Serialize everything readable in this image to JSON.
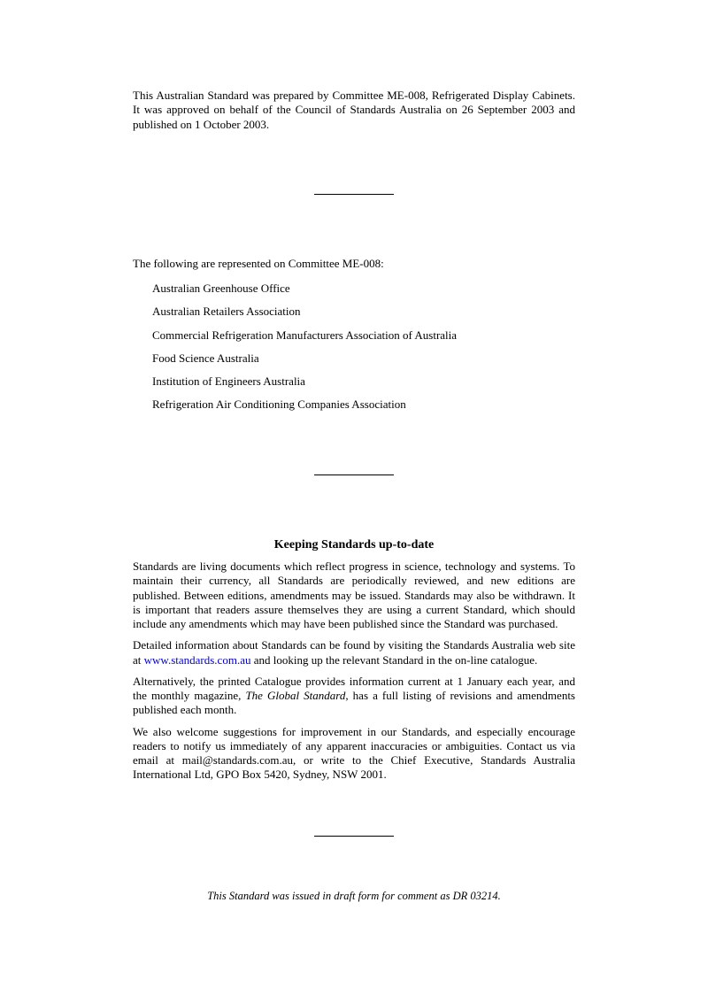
{
  "intro": "This Australian Standard was prepared by Committee ME-008, Refrigerated Display Cabinets. It was approved on behalf of the Council of Standards Australia on 26 September 2003 and published on 1 October 2003.",
  "committee": {
    "intro": "The following are represented on Committee ME-008:",
    "items": [
      "Australian Greenhouse Office",
      "Australian Retailers Association",
      "Commercial Refrigeration Manufacturers Association of Australia",
      "Food Science Australia",
      "Institution of Engineers Australia",
      "Refrigeration Air Conditioning Companies Association"
    ]
  },
  "keeping": {
    "title": "Keeping Standards up-to-date",
    "p1": "Standards are living documents which reflect progress in science, technology and systems. To maintain their currency, all Standards are periodically reviewed, and new editions are published. Between editions, amendments may be issued. Standards may also be withdrawn. It is important that readers assure themselves they are using a current Standard, which should include any amendments which may have been published since the Standard was purchased.",
    "p2a": "Detailed information about Standards can be found by visiting the Standards Australia web site at ",
    "p2link": "www.standards.com.au",
    "p2b": " and looking up the relevant Standard in the on-line catalogue.",
    "p3a": "Alternatively, the printed Catalogue provides information current at 1 January each year, and the monthly magazine, ",
    "p3italic": "The Global Standard",
    "p3b": ", has a full listing of revisions and amendments published each month.",
    "p4": "We also welcome suggestions for improvement in our Standards, and especially encourage readers to notify us immediately of any apparent inaccuracies or ambiguities. Contact us via email at mail@standards.com.au, or write to the Chief Executive, Standards Australia International Ltd, GPO Box 5420, Sydney, NSW 2001."
  },
  "draft_note": "This Standard was issued in draft form for comment as DR 03214."
}
